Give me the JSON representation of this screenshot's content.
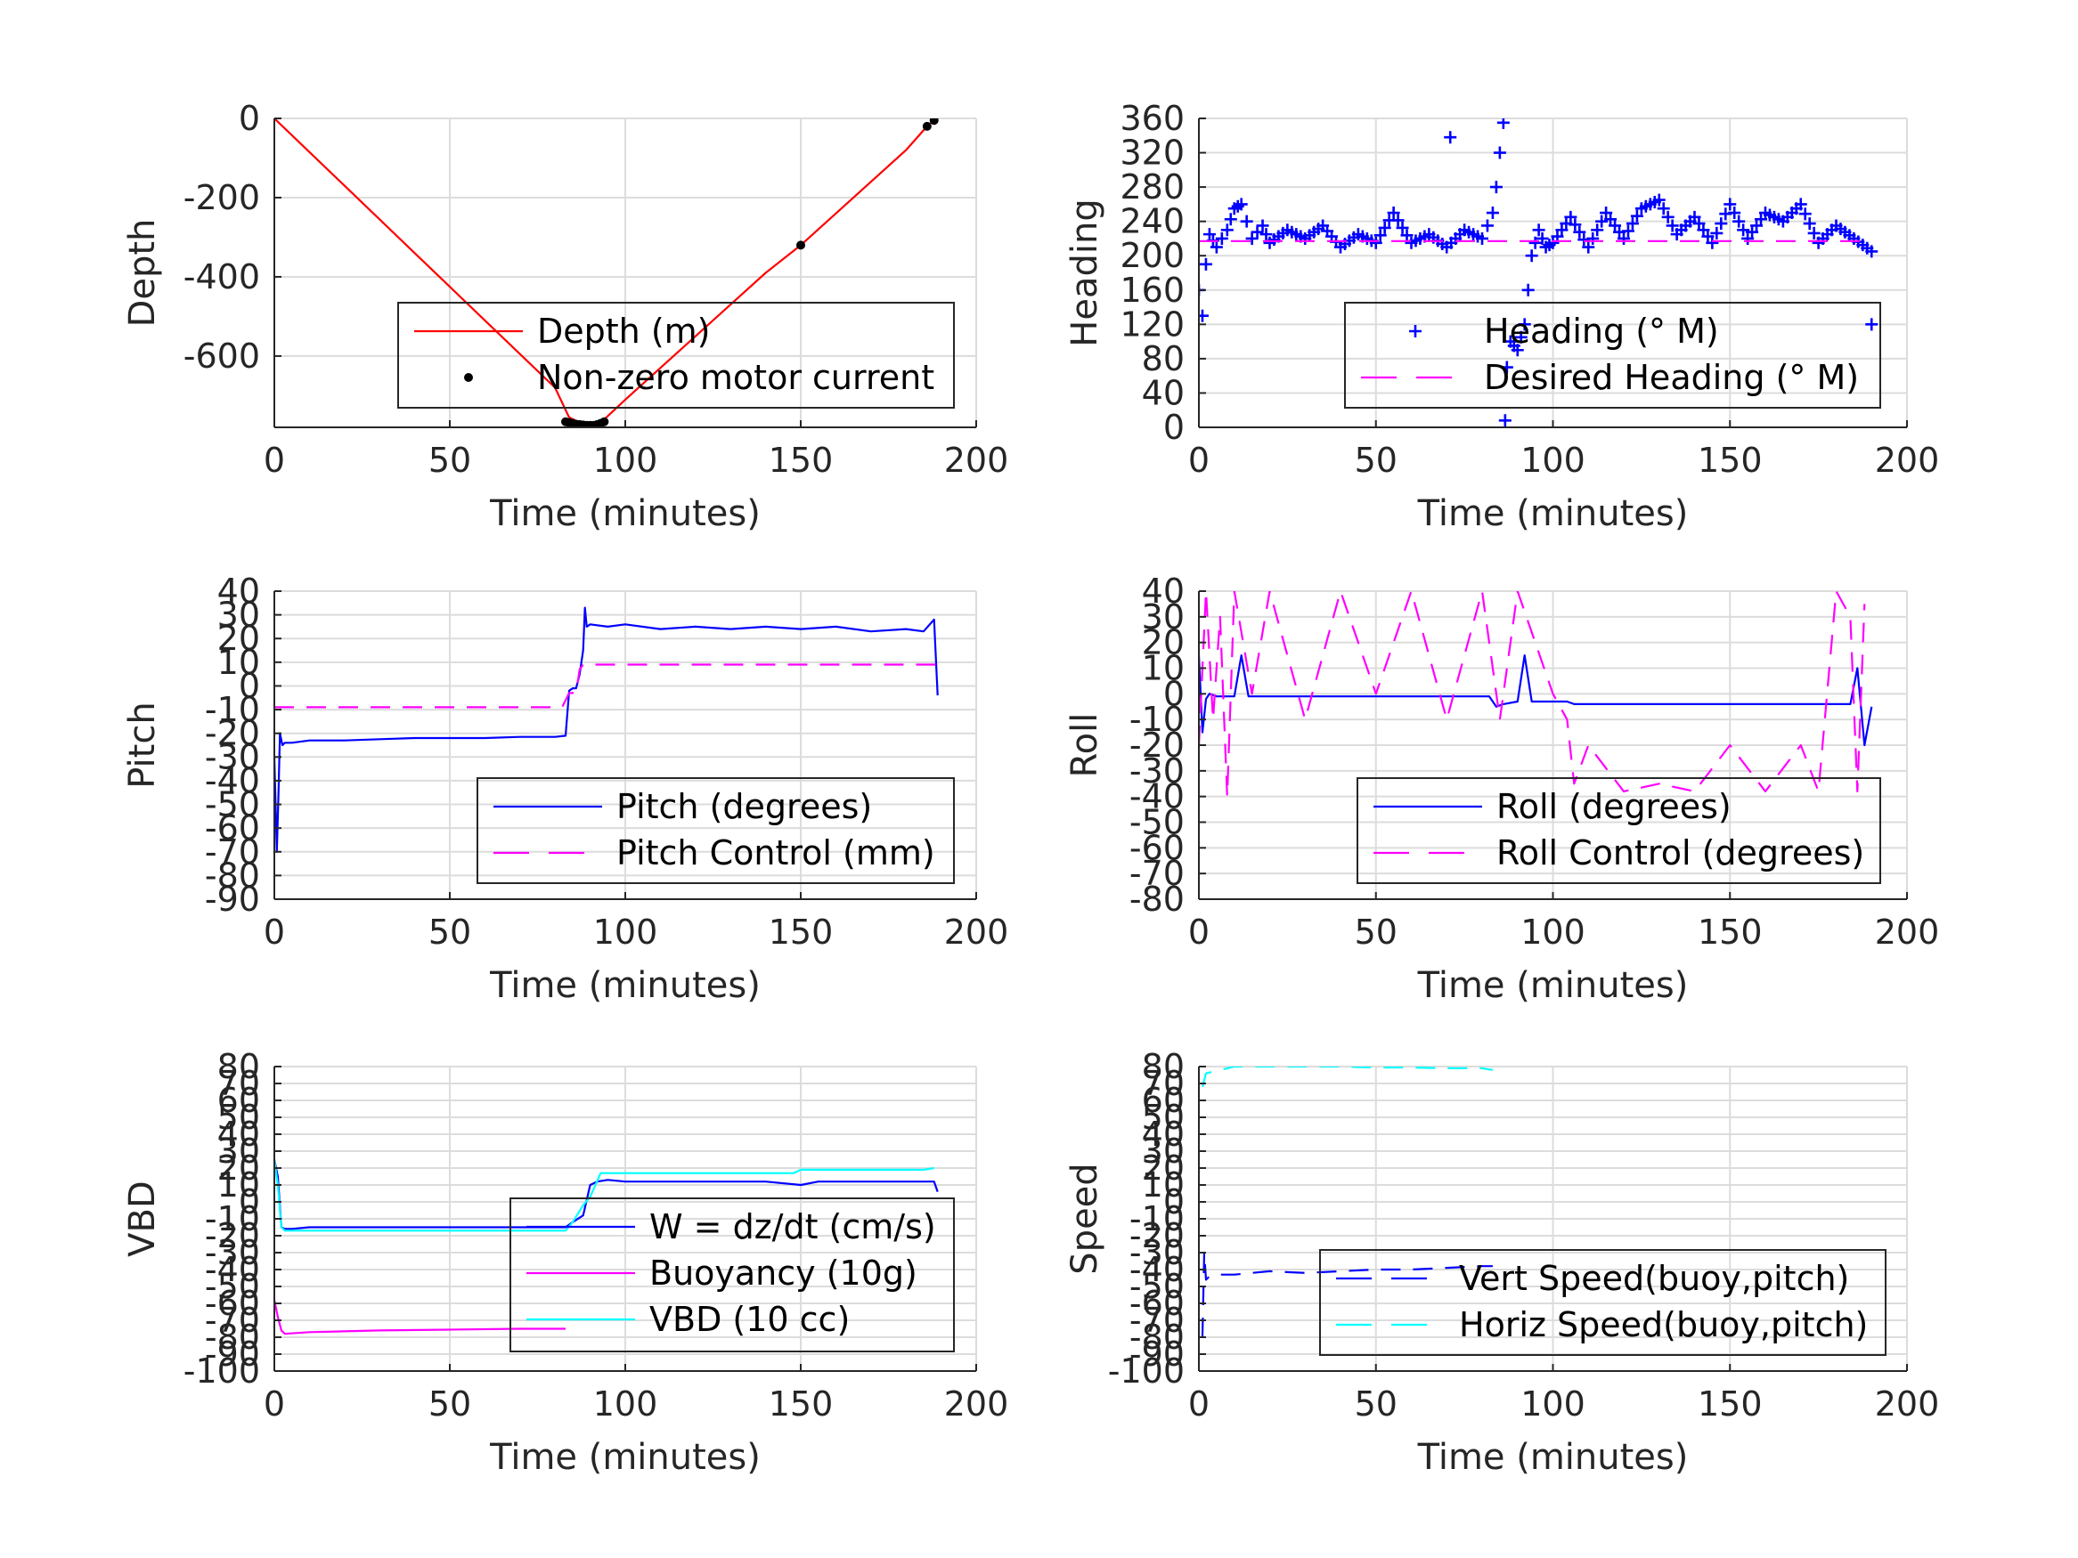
{
  "chart_data": [
    {
      "type": "line",
      "ylabel": "Depth",
      "xlabel": "Time (minutes)",
      "xlim": [
        0,
        200
      ],
      "ylim": [
        -780,
        0
      ],
      "xticks": [
        0,
        50,
        100,
        150,
        200
      ],
      "yticks": [
        0,
        -200,
        -400,
        -600
      ],
      "grid": true,
      "legend_position": "bottom-right",
      "series": [
        {
          "name": "Depth (m)",
          "color": "#ff0000",
          "style": "solid",
          "marker": "none",
          "x": [
            0,
            10,
            20,
            30,
            40,
            50,
            60,
            70,
            80,
            84,
            88,
            90,
            92,
            94,
            100,
            110,
            120,
            130,
            140,
            150,
            160,
            170,
            180,
            186,
            188
          ],
          "y": [
            0,
            -85,
            -170,
            -255,
            -340,
            -425,
            -510,
            -595,
            -680,
            -755,
            -772,
            -775,
            -770,
            -760,
            -710,
            -630,
            -550,
            -470,
            -390,
            -320,
            -240,
            -160,
            -80,
            -20,
            -5
          ]
        },
        {
          "name": "Non-zero motor current",
          "color": "#000000",
          "style": "none",
          "marker": "dot",
          "x": [
            83,
            84,
            85,
            86,
            87,
            88,
            89,
            90,
            91,
            92,
            93,
            94,
            150,
            186,
            188
          ],
          "y": [
            -766,
            -768,
            -770,
            -772,
            -773,
            -774,
            -775,
            -775,
            -775,
            -773,
            -770,
            -766,
            -320,
            -20,
            -5
          ]
        }
      ]
    },
    {
      "type": "scatter",
      "ylabel": "Heading",
      "xlabel": "Time (minutes)",
      "xlim": [
        0,
        200
      ],
      "ylim": [
        0,
        360
      ],
      "xticks": [
        0,
        50,
        100,
        150,
        200
      ],
      "yticks": [
        0,
        40,
        80,
        120,
        160,
        200,
        240,
        280,
        320,
        360
      ],
      "grid": true,
      "legend_position": "bottom-right",
      "series": [
        {
          "name": "Heading (° M)",
          "color": "#0000ff",
          "style": "none",
          "marker": "plus",
          "x": [
            0,
            1,
            2,
            3,
            5,
            8,
            10,
            12,
            15,
            18,
            20,
            25,
            30,
            35,
            40,
            45,
            50,
            55,
            60,
            65,
            70,
            75,
            80,
            83,
            84,
            85,
            86,
            86.5,
            87,
            88,
            90,
            92,
            94,
            96,
            98,
            100,
            105,
            110,
            115,
            120,
            125,
            130,
            135,
            140,
            145,
            150,
            155,
            160,
            165,
            170,
            175,
            180,
            185,
            190
          ],
          "y": [
            160,
            130,
            190,
            225,
            210,
            230,
            255,
            260,
            220,
            235,
            215,
            230,
            220,
            235,
            210,
            225,
            215,
            250,
            215,
            225,
            210,
            230,
            220,
            250,
            280,
            320,
            355,
            8,
            70,
            100,
            90,
            120,
            200,
            230,
            210,
            215,
            245,
            210,
            250,
            220,
            255,
            265,
            225,
            245,
            215,
            260,
            220,
            250,
            240,
            260,
            215,
            235,
            220,
            205
          ]
        },
        {
          "name": "Desired Heading (° M)",
          "color": "#ff00ff",
          "style": "dashed",
          "marker": "none",
          "x": [
            0,
            190
          ],
          "y": [
            217,
            217
          ]
        }
      ],
      "outliers": [
        {
          "x": 71,
          "y": 338
        },
        {
          "x": 190,
          "y": 120
        }
      ]
    },
    {
      "type": "line",
      "ylabel": "Pitch",
      "xlabel": "Time (minutes)",
      "xlim": [
        0,
        200
      ],
      "ylim": [
        -90,
        40
      ],
      "xticks": [
        0,
        50,
        100,
        150,
        200
      ],
      "yticks": [
        40,
        30,
        20,
        10,
        0,
        -10,
        -20,
        -30,
        -40,
        -50,
        -60,
        -70,
        -80,
        -90
      ],
      "grid": true,
      "legend_position": "bottom-right",
      "series": [
        {
          "name": "Pitch (degrees)",
          "color": "#0000ff",
          "style": "solid",
          "marker": "none",
          "x": [
            0,
            0.7,
            1.2,
            1.6,
            2.3,
            3,
            5,
            10,
            20,
            30,
            40,
            50,
            60,
            70,
            80,
            83,
            84,
            85,
            86,
            87,
            88,
            88.5,
            89,
            90,
            95,
            100,
            110,
            120,
            130,
            140,
            150,
            160,
            170,
            180,
            185,
            188,
            189
          ],
          "y": [
            -30,
            -70,
            -45,
            -20,
            -25,
            -24,
            -24,
            -23,
            -23,
            -22.5,
            -22,
            -22,
            -22,
            -21.5,
            -21.5,
            -21,
            -2,
            -1,
            -1,
            5,
            15,
            33,
            25,
            26,
            25,
            26,
            24,
            25,
            24,
            25,
            24,
            25,
            23,
            24,
            23,
            28,
            -4
          ]
        },
        {
          "name": "Pitch Control (mm)",
          "color": "#ff00ff",
          "style": "dashed",
          "marker": "none",
          "x": [
            0,
            10,
            20,
            30,
            40,
            50,
            60,
            70,
            80,
            82,
            84,
            86,
            87,
            88,
            90,
            100,
            120,
            140,
            160,
            180,
            189
          ],
          "y": [
            -9,
            -9,
            -9,
            -9,
            -9,
            -9,
            -9,
            -9,
            -9,
            -9,
            -3,
            -3,
            7,
            9,
            9,
            9,
            9,
            9,
            9,
            9,
            9
          ]
        }
      ]
    },
    {
      "type": "line",
      "ylabel": "Roll",
      "xlabel": "Time (minutes)",
      "xlim": [
        0,
        200
      ],
      "ylim": [
        -80,
        40
      ],
      "xticks": [
        0,
        50,
        100,
        150,
        200
      ],
      "yticks": [
        40,
        30,
        20,
        10,
        0,
        -10,
        -20,
        -30,
        -40,
        -50,
        -60,
        -70,
        -80
      ],
      "grid": true,
      "legend_position": "bottom-right",
      "series": [
        {
          "name": "Roll (degrees)",
          "color": "#0000ff",
          "style": "solid",
          "marker": "none",
          "x": [
            0,
            1,
            2,
            3,
            5,
            10,
            12,
            14,
            16,
            20,
            30,
            40,
            50,
            60,
            70,
            80,
            82,
            84,
            86,
            90,
            92,
            94,
            96,
            100,
            104,
            106,
            110,
            120,
            130,
            140,
            150,
            160,
            170,
            180,
            184,
            186,
            188,
            190
          ],
          "y": [
            15,
            -15,
            -2,
            0,
            -1,
            -1,
            15,
            -1,
            -1,
            -1,
            -1,
            -1,
            -1,
            -1,
            -1,
            -1,
            -1,
            -5,
            -4,
            -3,
            15,
            -3,
            -3,
            -3,
            -3,
            -4,
            -4,
            -4,
            -4,
            -4,
            -4,
            -4,
            -4,
            -4,
            -4,
            10,
            -20,
            -5
          ]
        },
        {
          "name": "Roll Control (degrees)",
          "color": "#ff00ff",
          "style": "dashed",
          "marker": "none",
          "x": [
            0,
            2,
            4,
            6,
            8,
            10,
            15,
            20,
            30,
            40,
            50,
            60,
            70,
            80,
            85,
            90,
            100,
            104,
            106,
            110,
            120,
            130,
            140,
            150,
            160,
            170,
            175,
            180,
            184,
            186,
            188
          ],
          "y": [
            -20,
            40,
            -10,
            30,
            -40,
            40,
            0,
            40,
            -10,
            40,
            0,
            40,
            -10,
            40,
            -10,
            40,
            0,
            -10,
            -35,
            -20,
            -38,
            -35,
            -38,
            -20,
            -38,
            -20,
            -38,
            40,
            30,
            -38,
            35
          ]
        }
      ]
    },
    {
      "type": "line",
      "ylabel": "VBD",
      "xlabel": "Time (minutes)",
      "xlim": [
        0,
        200
      ],
      "ylim": [
        -100,
        80
      ],
      "xticks": [
        0,
        50,
        100,
        150,
        200
      ],
      "yticks": [
        80,
        70,
        60,
        50,
        40,
        30,
        20,
        10,
        0,
        -10,
        -20,
        -30,
        -40,
        -50,
        -60,
        -70,
        -80,
        -90,
        -100
      ],
      "grid": true,
      "legend_position": "bottom-right",
      "series": [
        {
          "name": "W = dz/dt (cm/s)",
          "color": "#0000ff",
          "style": "solid",
          "marker": "none",
          "x": [
            0,
            1,
            2,
            3,
            5,
            10,
            20,
            30,
            40,
            50,
            60,
            70,
            80,
            83,
            85,
            88,
            90,
            92,
            95,
            100,
            120,
            140,
            150,
            155,
            170,
            185,
            188,
            189
          ],
          "y": [
            25,
            15,
            -15,
            -16,
            -16,
            -15,
            -15,
            -15,
            -15,
            -15,
            -15,
            -15,
            -15,
            -15,
            -12,
            -8,
            10,
            12,
            13,
            12,
            12,
            12,
            10,
            12,
            12,
            12,
            12,
            6
          ]
        },
        {
          "name": "Buoyancy (10g)",
          "color": "#ff00ff",
          "style": "solid",
          "marker": "none",
          "x": [
            0,
            1,
            2,
            3,
            10,
            30,
            50,
            70,
            83
          ],
          "y": [
            -58,
            -68,
            -76,
            -78,
            -77,
            -76,
            -75.5,
            -75,
            -75
          ]
        },
        {
          "name": "VBD (10 cc)",
          "color": "#00ffff",
          "style": "solid",
          "marker": "none",
          "x": [
            0,
            1,
            2,
            3,
            5,
            10,
            30,
            50,
            70,
            83,
            85,
            88,
            90,
            93,
            95,
            100,
            120,
            148,
            150,
            160,
            185,
            188
          ],
          "y": [
            25,
            10,
            -15,
            -17,
            -17,
            -17,
            -17,
            -17,
            -17,
            -17,
            -12,
            -2,
            3,
            17,
            17,
            17,
            17,
            17,
            19,
            19,
            19,
            20
          ]
        }
      ]
    },
    {
      "type": "line",
      "ylabel": "Speed",
      "xlabel": "Time (minutes)",
      "xlim": [
        0,
        200
      ],
      "ylim": [
        -100,
        80
      ],
      "xticks": [
        0,
        50,
        100,
        150,
        200
      ],
      "yticks": [
        80,
        70,
        60,
        50,
        40,
        30,
        20,
        10,
        0,
        -10,
        -20,
        -30,
        -40,
        -50,
        -60,
        -70,
        -80,
        -90,
        -100
      ],
      "grid": true,
      "legend_position": "bottom-right",
      "series": [
        {
          "name": "Vert Speed(buoy,pitch)",
          "color": "#0000ff",
          "style": "dashed",
          "marker": "none",
          "x": [
            1,
            1.5,
            2,
            3,
            5,
            10,
            20,
            30,
            40,
            50,
            60,
            70,
            80,
            83
          ],
          "y": [
            -80,
            -30,
            -46,
            -44,
            -43,
            -43,
            -41,
            -42,
            -41,
            -40,
            -40,
            -39,
            -38,
            -38
          ]
        },
        {
          "name": "Horiz Speed(buoy,pitch)",
          "color": "#00ffff",
          "style": "dashed",
          "marker": "none",
          "x": [
            1,
            2,
            10,
            20,
            30,
            40,
            50,
            60,
            70,
            80,
            83
          ],
          "y": [
            68,
            76,
            80,
            80,
            80,
            80,
            79.5,
            79.5,
            79,
            79,
            78
          ]
        }
      ]
    }
  ]
}
